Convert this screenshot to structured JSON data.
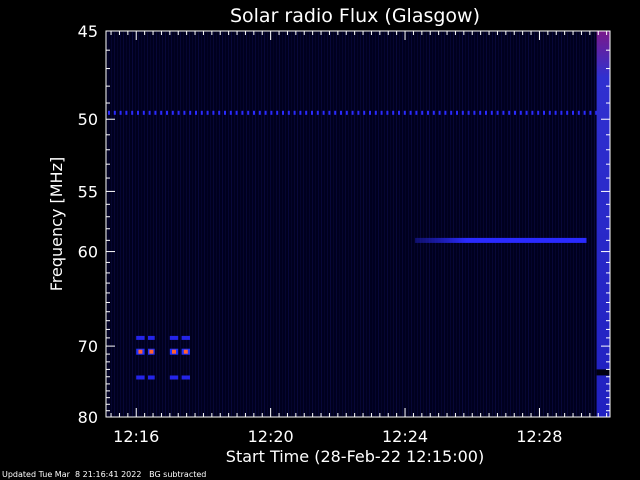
{
  "chart_data": {
    "type": "heatmap",
    "title": "Solar radio Flux (Glasgow)",
    "xlabel": "Start Time (28-Feb-22 12:15:00)",
    "ylabel": "Frequency [MHz]",
    "x_unit": "minutes after 12:15:00",
    "xlim": [
      0.1,
      15.1
    ],
    "ylim": [
      45,
      80
    ],
    "y_scale": "reciprocal",
    "x_ticks": [
      {
        "value": 1,
        "label": "12:16"
      },
      {
        "value": 5,
        "label": "12:20"
      },
      {
        "value": 9,
        "label": "12:24"
      },
      {
        "value": 13,
        "label": "12:28"
      }
    ],
    "y_ticks": [
      {
        "value": 45,
        "label": "45"
      },
      {
        "value": 50,
        "label": "50"
      },
      {
        "value": 55,
        "label": "55"
      },
      {
        "value": 60,
        "label": "60"
      },
      {
        "value": 70,
        "label": "70"
      },
      {
        "value": 80,
        "label": "80"
      }
    ],
    "features": [
      {
        "name": "interference-line",
        "freq": 49.6,
        "t_start": 0.1,
        "t_end": 14.9,
        "level": 0.35,
        "kind": "dotted"
      },
      {
        "name": "drifting-band",
        "freq": 59.0,
        "t_start": 9.3,
        "t_end": 14.4,
        "level": 0.6,
        "kind": "band"
      },
      {
        "name": "burst-upper",
        "freq": 69.0,
        "t_start": 1.0,
        "t_end": 2.6,
        "level": 0.5,
        "kind": "dashed"
      },
      {
        "name": "burst-core",
        "freq": 70.7,
        "t_start": 1.0,
        "t_end": 2.6,
        "level": 1.0,
        "kind": "dashed"
      },
      {
        "name": "burst-lower",
        "freq": 74.1,
        "t_start": 1.0,
        "t_end": 2.6,
        "level": 0.5,
        "kind": "dashed"
      },
      {
        "name": "edge-column",
        "freq_start": 45,
        "freq_end": 80,
        "t_start": 14.7,
        "t_end": 15.1,
        "level": 0.7,
        "kind": "column"
      }
    ]
  },
  "footer": {
    "updated": "Updated Tue Mar  8 21:16:41 2022",
    "note": "BG subtracted"
  },
  "colors": {
    "background": "#000000",
    "axes": "#ffffff",
    "low": "#00003a",
    "mid": "#2222ff",
    "high": "#ff6030"
  }
}
